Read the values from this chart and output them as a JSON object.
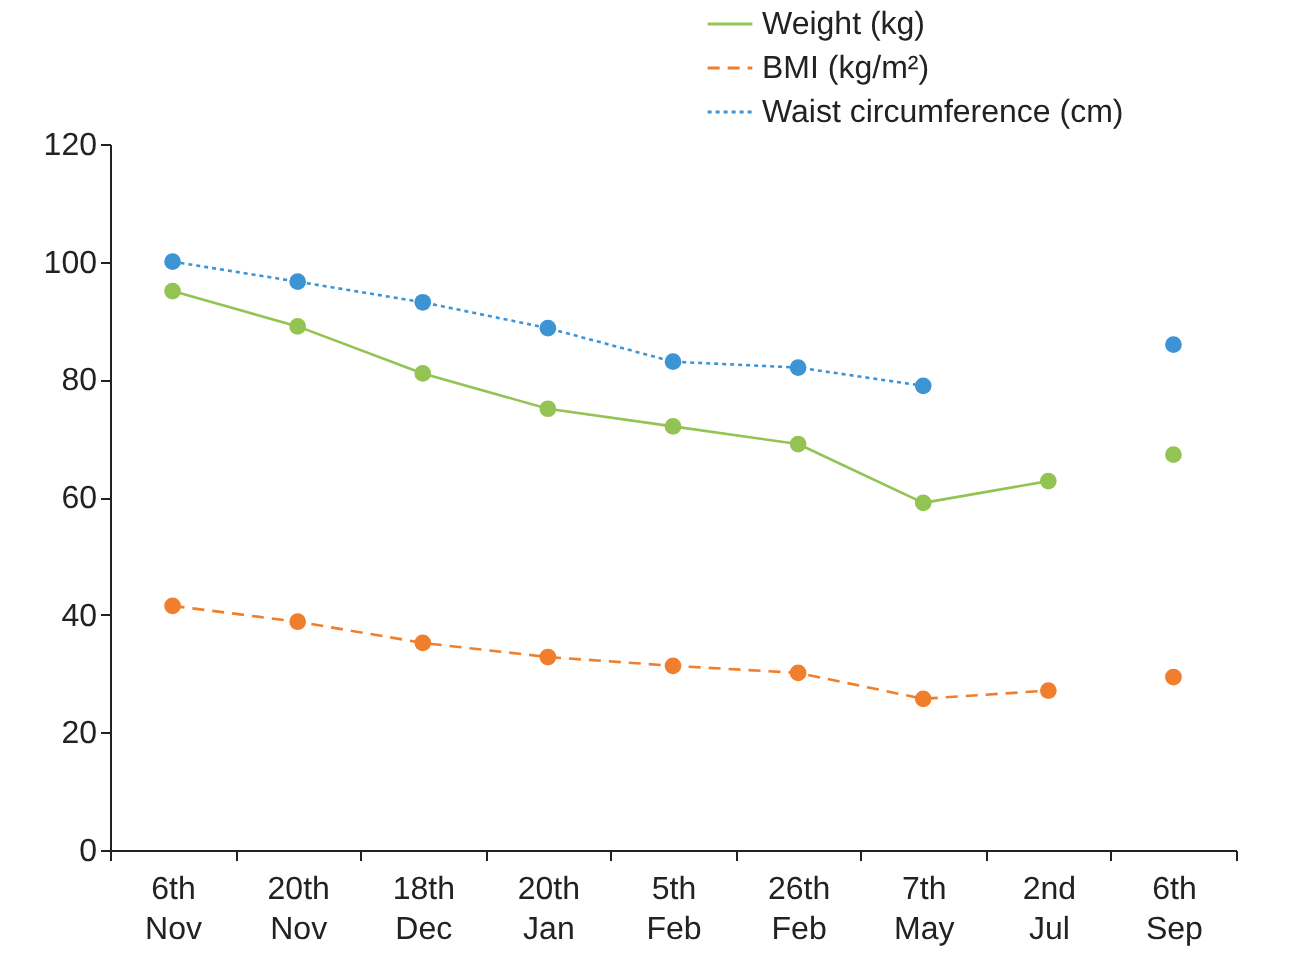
{
  "chart_data": {
    "type": "line",
    "categories": [
      "6th Nov",
      "20th Nov",
      "18th Dec",
      "20th Jan",
      "5th Feb",
      "26th Feb",
      "7th May",
      "2nd Jul",
      "6th Sep"
    ],
    "series": [
      {
        "name": "Weight (kg)",
        "color": "#92c353",
        "line_style": "solid",
        "values": [
          95,
          89,
          81,
          75,
          72,
          69,
          59,
          62.7,
          null
        ]
      },
      {
        "name": "BMI (kg/m²)",
        "color": "#ef7f2d",
        "line_style": "dashed",
        "values": [
          41.5,
          38.8,
          35.2,
          32.8,
          31.3,
          30.1,
          25.7,
          27.1,
          null
        ]
      },
      {
        "name": "Waist circumference (cm)",
        "color": "#3d94d4",
        "line_style": "dotted",
        "values": [
          100,
          96.6,
          93.1,
          88.7,
          83,
          82,
          78.9,
          null,
          null
        ]
      },
      {
        "type": "scatter",
        "color": "#92c353",
        "values": [
          null,
          null,
          null,
          null,
          null,
          null,
          null,
          null,
          67.2
        ]
      },
      {
        "type": "scatter",
        "color": "#ef7f2d",
        "values": [
          null,
          null,
          null,
          null,
          null,
          null,
          null,
          null,
          29.4
        ]
      },
      {
        "type": "scatter",
        "color": "#3d94d4",
        "values": [
          null,
          null,
          null,
          null,
          null,
          null,
          null,
          null,
          85.9
        ]
      }
    ],
    "ylim": [
      0,
      120
    ],
    "yticks": [
      0,
      20,
      40,
      60,
      80,
      100,
      120
    ],
    "grid": false,
    "legend": "top right",
    "marker": "circle"
  }
}
